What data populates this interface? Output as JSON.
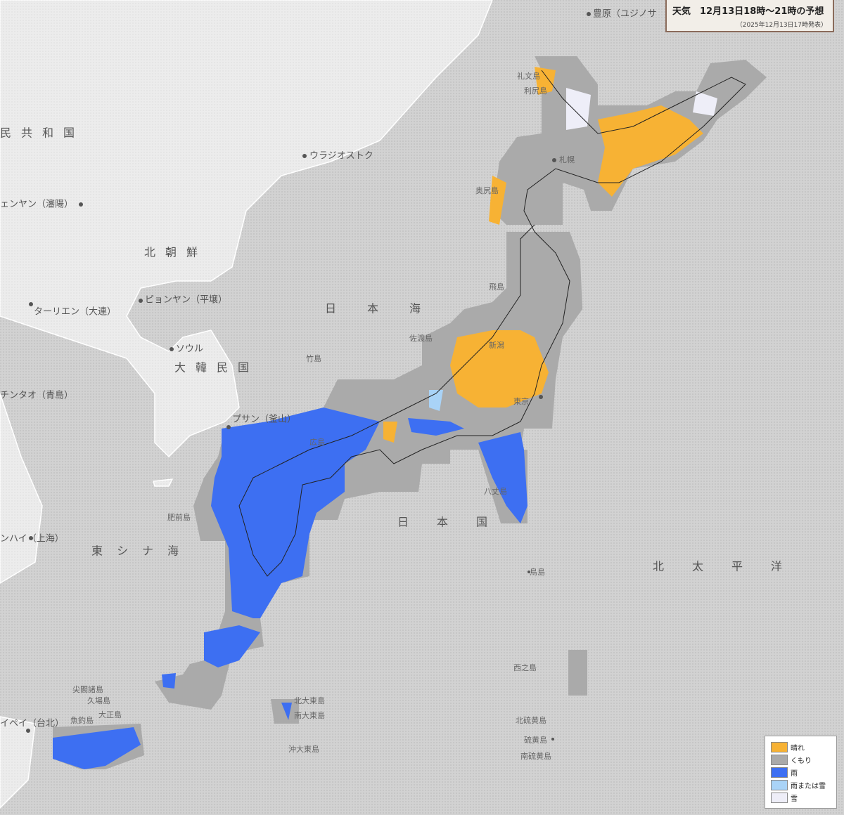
{
  "header": {
    "title": "天気　12月13日18時～21時の予想",
    "subtitle": "（2025年12月13日17時発表）"
  },
  "legend": [
    {
      "label": "晴れ",
      "color": "#f7b234"
    },
    {
      "label": "くもり",
      "color": "#aaaaaa"
    },
    {
      "label": "雨",
      "color": "#3d6ff2"
    },
    {
      "label": "雨または雪",
      "color": "#a9d3f7"
    },
    {
      "label": "雪",
      "color": "#eeeef8"
    }
  ],
  "places": [
    "豊原（ユジノサ",
    "ウラジオストク",
    "民共和国",
    "ェンヤン（瀋陽）",
    "北朝鮮",
    "ピョンヤン（平壌）",
    "ターリエン（大連）",
    "ソウル",
    "大韓民国",
    "チンタオ（青島）",
    "プサン（釜山）",
    "日本海",
    "竹島",
    "東シナ海",
    "ンハイ（上海）",
    "日本国",
    "北太平洋",
    "鳥島",
    "西之島",
    "尖閣諸島",
    "久場島",
    "大正島",
    "魚釣島",
    "イペイ（台北）",
    "北大東島",
    "南大東島",
    "沖大東島",
    "北硫黄島",
    "硫黄島",
    "南硫黄島",
    "礼文島",
    "利尻島",
    "奥尻島",
    "札幌",
    "飛島",
    "新潟",
    "佐渡島",
    "東京",
    "広島",
    "八丈島",
    "肥前島"
  ]
}
